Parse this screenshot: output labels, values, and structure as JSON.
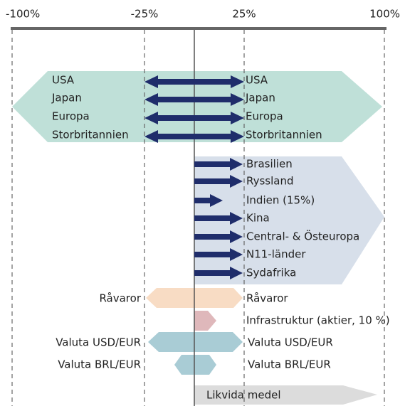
{
  "axis": {
    "labels": [
      "-100%",
      "-25%",
      "25%",
      "100%"
    ]
  },
  "developed": {
    "left_labels": [
      "USA",
      "Japan",
      "Europa",
      "Storbritannien"
    ],
    "right_labels": [
      "USA",
      "Japan",
      "Europa",
      "Storbritannien"
    ]
  },
  "emerging": {
    "labels": [
      "Brasilien",
      "Ryssland",
      "Indien (15%)",
      "Kina",
      "Central- & Östeuropa",
      "N11-länder",
      "Sydafrika"
    ]
  },
  "commodities": {
    "left_label": "Råvaror",
    "right_label": "Råvaror"
  },
  "infrastructure": {
    "label": "Infrastruktur (aktier, 10 %)"
  },
  "usd": {
    "left_label": "Valuta USD/EUR",
    "right_label": "Valuta USD/EUR"
  },
  "brl": {
    "left_label": "Valuta BRL/EUR",
    "right_label": "Valuta BRL/EUR"
  },
  "cash": {
    "label": "Likvida medel"
  }
}
